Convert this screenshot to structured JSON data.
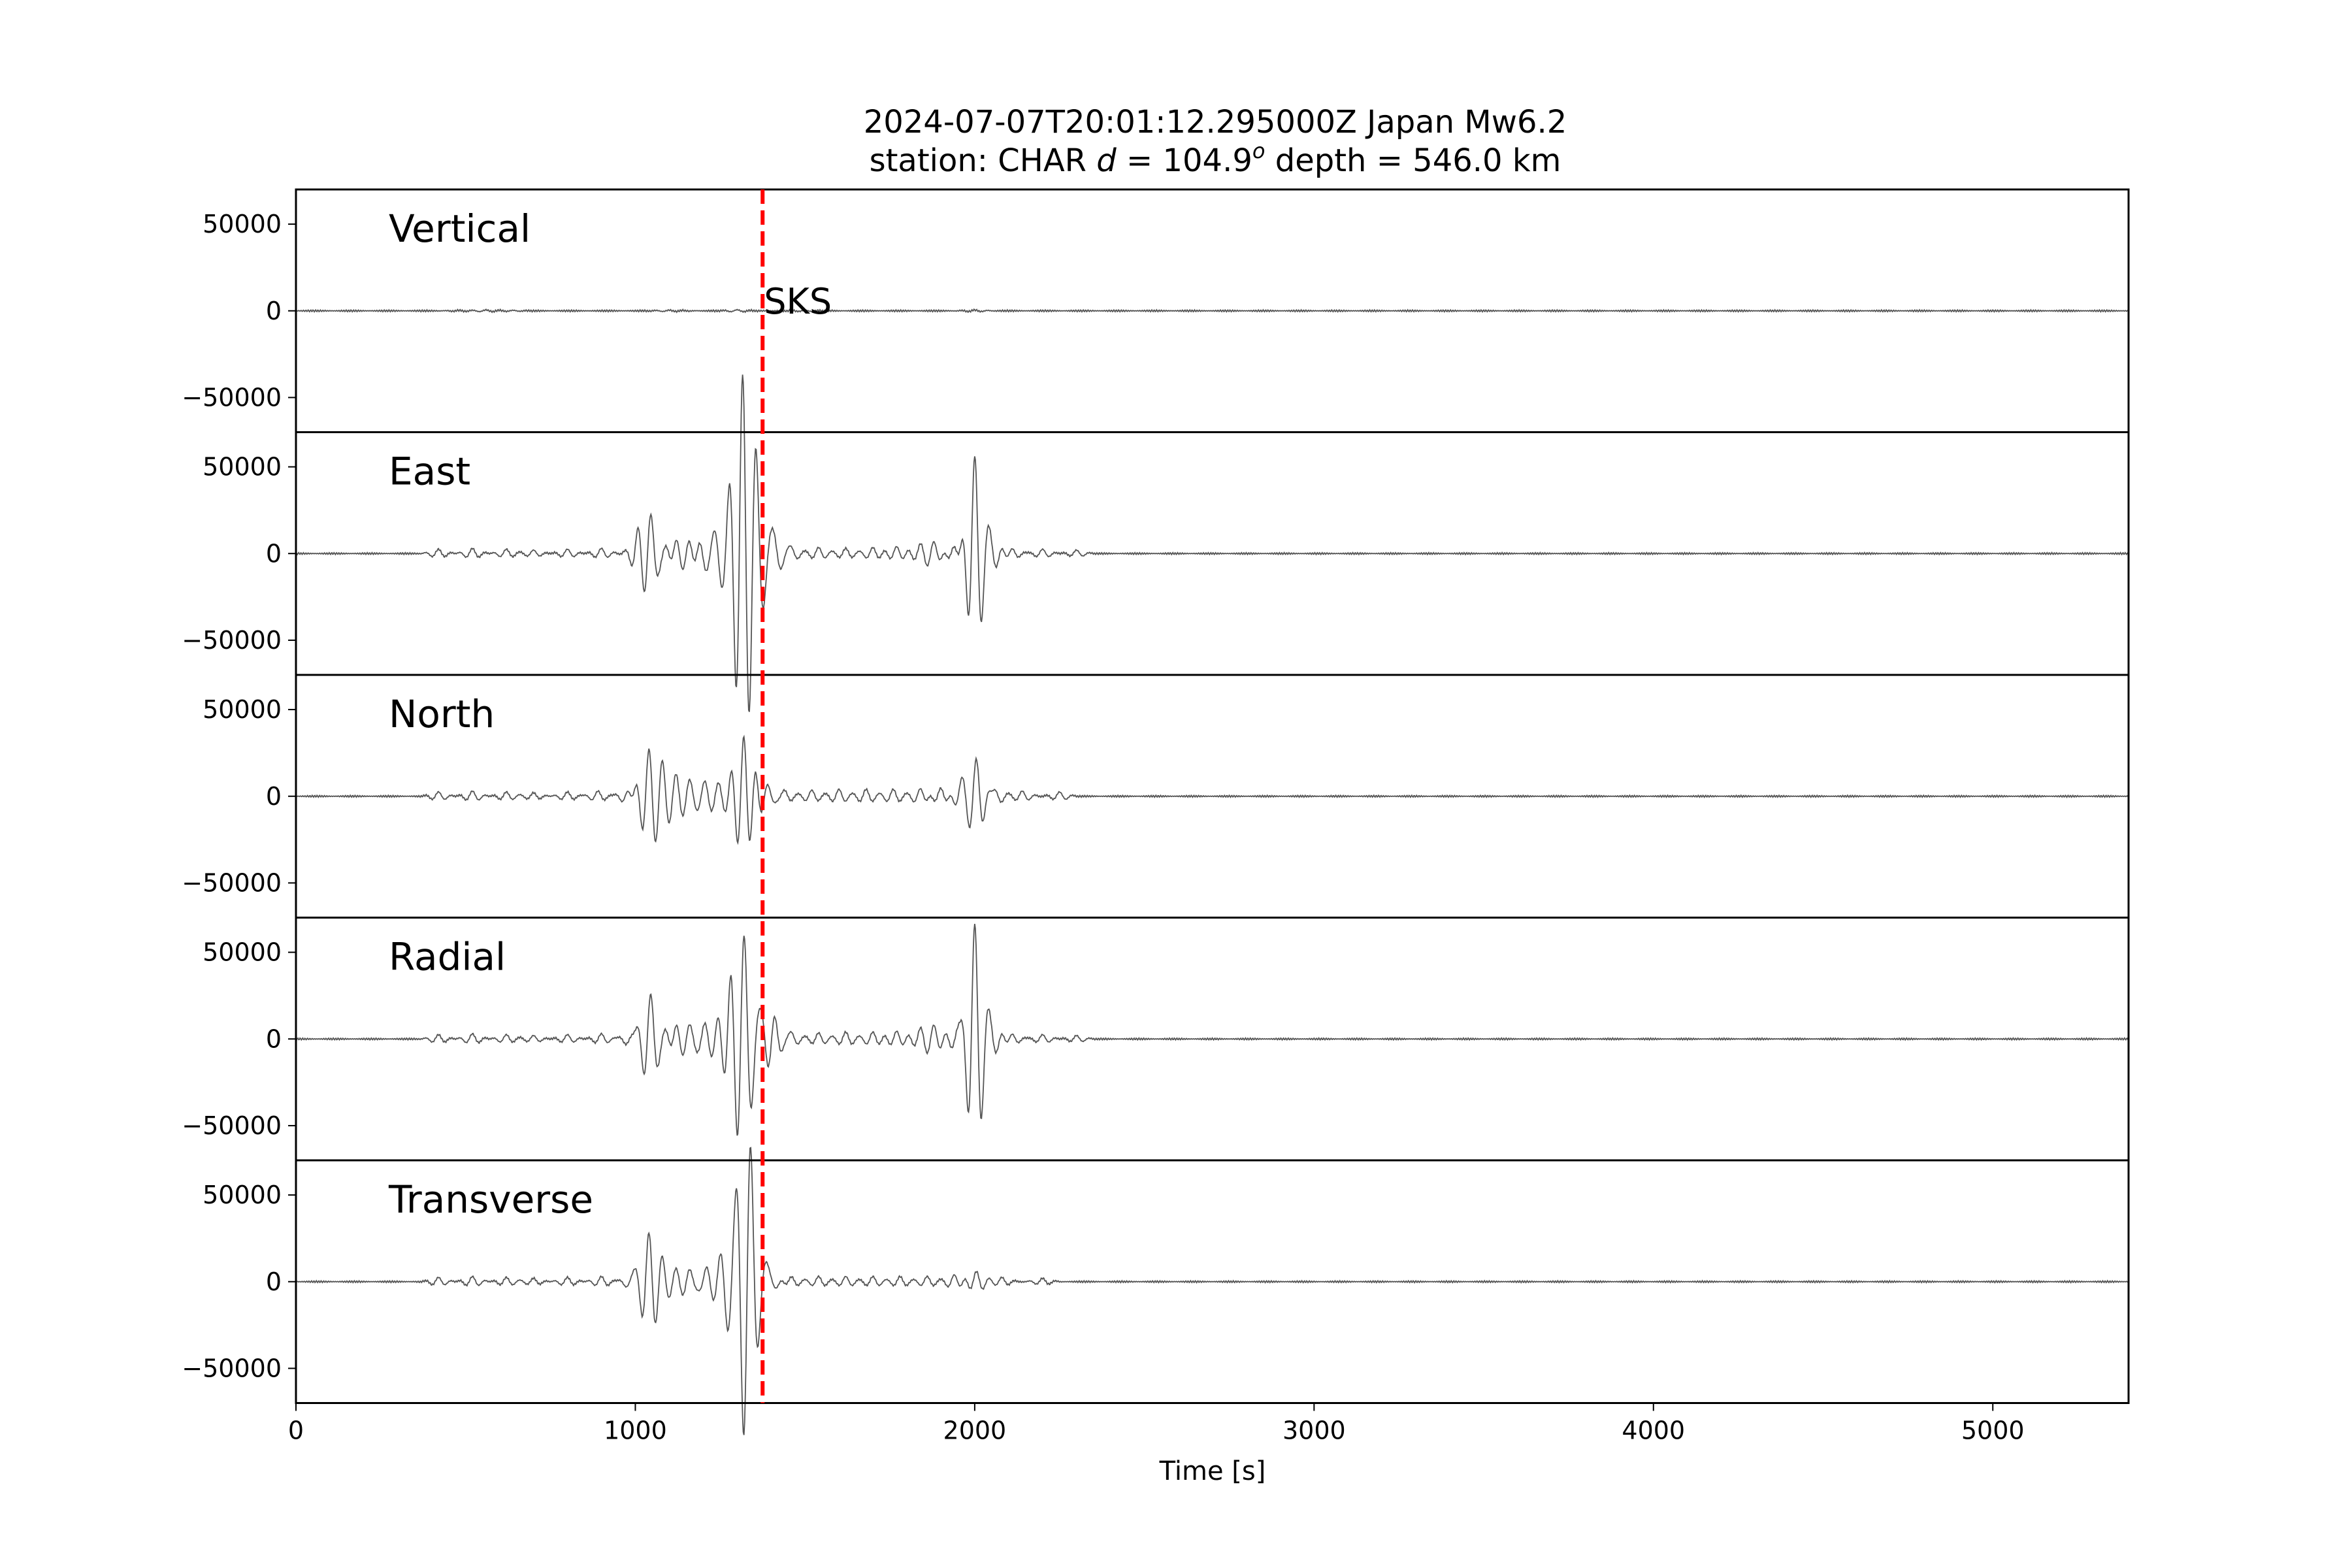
{
  "chart_data": {
    "type": "line",
    "title_line1": "2024-07-07T20:01:12.295000Z Japan Mw6.2",
    "title_line2_prefix": "station: CHAR ",
    "title_d_symbol": "d",
    "title_d_value": " = 104.9",
    "title_d_unit": "o",
    "title_depth": " depth = 546.0 km",
    "xlabel": "Time [s]",
    "xlim": [
      0,
      5400
    ],
    "xticks": [
      0,
      1000,
      2000,
      3000,
      4000,
      5000
    ],
    "ylim": [
      -70000,
      70000
    ],
    "yticks": [
      50000,
      0,
      -50000
    ],
    "ytick_labels": [
      "50000",
      "0",
      "−50000"
    ],
    "phase": {
      "name": "SKS",
      "time": 1375,
      "color": "#ff0000"
    },
    "trace_color": "#555555",
    "panels": [
      {
        "name": "Vertical",
        "wavelets": [
          [
            480,
            300,
            60
          ],
          [
            560,
            500,
            60
          ],
          [
            640,
            300,
            60
          ],
          [
            1100,
            400,
            80
          ],
          [
            1300,
            600,
            60
          ],
          [
            1500,
            400,
            80
          ],
          [
            2000,
            500,
            60
          ]
        ]
      },
      {
        "name": "East",
        "wavelets": [
          [
            420,
            2500,
            45
          ],
          [
            520,
            3000,
            45
          ],
          [
            620,
            2500,
            45
          ],
          [
            700,
            2000,
            45
          ],
          [
            800,
            2500,
            45
          ],
          [
            900,
            3000,
            45
          ],
          [
            1010,
            7000,
            45
          ],
          [
            1045,
            23000,
            55
          ],
          [
            1080,
            -10000,
            45
          ],
          [
            1120,
            8000,
            45
          ],
          [
            1160,
            6000,
            45
          ],
          [
            1205,
            -9000,
            45
          ],
          [
            1235,
            9000,
            45
          ],
          [
            1270,
            11000,
            45
          ],
          [
            1300,
            -30000,
            55
          ],
          [
            1315,
            55000,
            45
          ],
          [
            1335,
            -32000,
            50
          ],
          [
            1355,
            18000,
            45
          ],
          [
            1380,
            -16000,
            45
          ],
          [
            1410,
            12000,
            50
          ],
          [
            1460,
            4000,
            45
          ],
          [
            1540,
            3500,
            45
          ],
          [
            1620,
            3000,
            45
          ],
          [
            1700,
            3500,
            45
          ],
          [
            1770,
            4000,
            45
          ],
          [
            1840,
            4500,
            45
          ],
          [
            1880,
            6000,
            45
          ],
          [
            1940,
            5000,
            45
          ],
          [
            2000,
            55000,
            42
          ],
          [
            2045,
            10000,
            50
          ],
          [
            2110,
            3000,
            45
          ],
          [
            2200,
            2500,
            45
          ],
          [
            2300,
            2000,
            45
          ]
        ]
      },
      {
        "name": "North",
        "wavelets": [
          [
            420,
            2500,
            45
          ],
          [
            520,
            3000,
            45
          ],
          [
            620,
            2500,
            45
          ],
          [
            700,
            2000,
            45
          ],
          [
            800,
            2500,
            45
          ],
          [
            890,
            3000,
            45
          ],
          [
            980,
            5000,
            45
          ],
          [
            1040,
            25000,
            55
          ],
          [
            1080,
            10000,
            45
          ],
          [
            1120,
            9000,
            45
          ],
          [
            1160,
            7000,
            45
          ],
          [
            1205,
            7000,
            45
          ],
          [
            1245,
            5000,
            45
          ],
          [
            1285,
            6000,
            45
          ],
          [
            1320,
            33000,
            45
          ],
          [
            1350,
            8000,
            45
          ],
          [
            1390,
            5000,
            45
          ],
          [
            1440,
            3500,
            45
          ],
          [
            1520,
            3500,
            45
          ],
          [
            1600,
            4000,
            45
          ],
          [
            1680,
            4000,
            45
          ],
          [
            1760,
            4000,
            45
          ],
          [
            1840,
            4500,
            45
          ],
          [
            1900,
            5000,
            45
          ],
          [
            1960,
            7000,
            45
          ],
          [
            2005,
            21000,
            50
          ],
          [
            2060,
            5000,
            45
          ],
          [
            2140,
            3000,
            45
          ],
          [
            2250,
            2500,
            45
          ]
        ]
      },
      {
        "name": "Radial",
        "wavelets": [
          [
            420,
            2500,
            45
          ],
          [
            520,
            3000,
            45
          ],
          [
            620,
            2500,
            45
          ],
          [
            700,
            2000,
            45
          ],
          [
            800,
            2500,
            45
          ],
          [
            900,
            3000,
            45
          ],
          [
            990,
            5000,
            45
          ],
          [
            1045,
            28000,
            55
          ],
          [
            1080,
            -10000,
            45
          ],
          [
            1120,
            8000,
            45
          ],
          [
            1160,
            6000,
            45
          ],
          [
            1205,
            7000,
            45
          ],
          [
            1245,
            7000,
            45
          ],
          [
            1280,
            9000,
            45
          ],
          [
            1300,
            -25000,
            50
          ],
          [
            1320,
            33000,
            45
          ],
          [
            1345,
            -18000,
            45
          ],
          [
            1375,
            12000,
            45
          ],
          [
            1410,
            10000,
            45
          ],
          [
            1460,
            4000,
            45
          ],
          [
            1540,
            3500,
            45
          ],
          [
            1620,
            4000,
            45
          ],
          [
            1700,
            4000,
            45
          ],
          [
            1770,
            4500,
            45
          ],
          [
            1840,
            5000,
            45
          ],
          [
            1880,
            7000,
            45
          ],
          [
            1950,
            7000,
            45
          ],
          [
            2000,
            65000,
            42
          ],
          [
            2045,
            10000,
            50
          ],
          [
            2110,
            3000,
            45
          ],
          [
            2200,
            2500,
            45
          ],
          [
            2300,
            2000,
            45
          ]
        ]
      },
      {
        "name": "Transverse",
        "wavelets": [
          [
            420,
            2500,
            45
          ],
          [
            520,
            3000,
            45
          ],
          [
            620,
            2500,
            45
          ],
          [
            700,
            2000,
            45
          ],
          [
            800,
            2500,
            45
          ],
          [
            900,
            3000,
            45
          ],
          [
            990,
            4000,
            45
          ],
          [
            1040,
            27000,
            50
          ],
          [
            1080,
            6000,
            45
          ],
          [
            1120,
            5000,
            45
          ],
          [
            1160,
            6000,
            45
          ],
          [
            1210,
            7000,
            45
          ],
          [
            1250,
            6000,
            45
          ],
          [
            1290,
            30000,
            50
          ],
          [
            1320,
            -62000,
            45
          ],
          [
            1340,
            36000,
            50
          ],
          [
            1370,
            -15000,
            45
          ],
          [
            1400,
            5000,
            45
          ],
          [
            1460,
            3000,
            45
          ],
          [
            1540,
            3000,
            45
          ],
          [
            1620,
            3000,
            45
          ],
          [
            1700,
            3000,
            45
          ],
          [
            1780,
            3000,
            45
          ],
          [
            1860,
            3000,
            45
          ],
          [
            1940,
            4000,
            45
          ],
          [
            2005,
            6000,
            45
          ],
          [
            2080,
            2500,
            45
          ],
          [
            2200,
            2000,
            45
          ]
        ]
      }
    ]
  }
}
